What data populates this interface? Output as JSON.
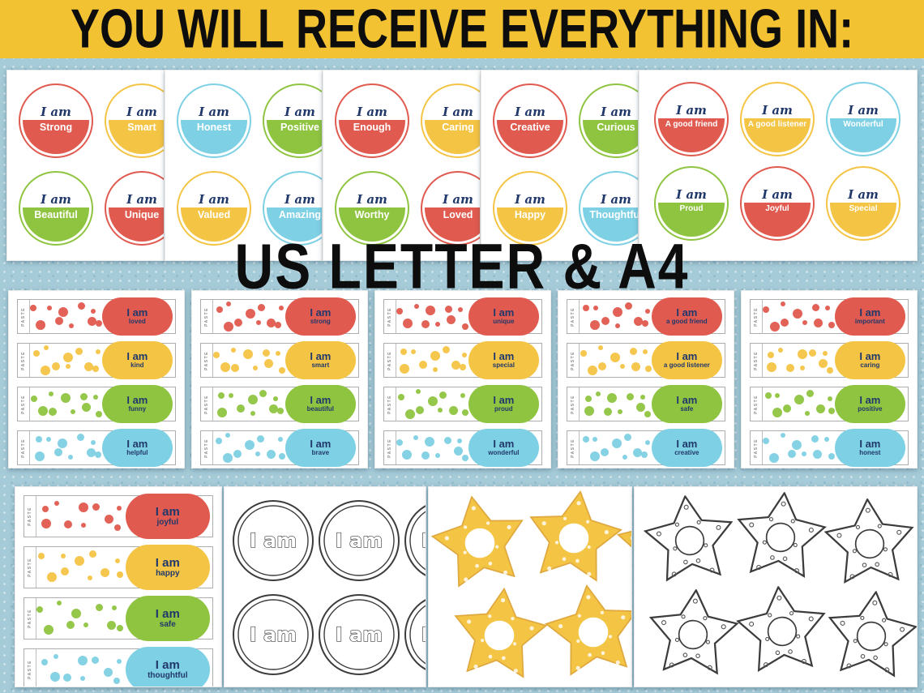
{
  "banner": {
    "text": "YOU WILL RECEIVE EVERYTHING IN:"
  },
  "format_overlay": "US LETTER & A4",
  "affirmation_prefix": "I am",
  "paste_label": "PASTE",
  "palette": {
    "red": "#E05A4F",
    "yellow": "#F4C445",
    "green": "#8FC441",
    "blue": "#7ED0E4",
    "navy": "#21386B",
    "banner_yellow": "#F2C233",
    "background_blue": "#A6CBD8",
    "ink": "#0D0D0D",
    "outline_ink": "#3C3C3C",
    "star_stroke": "#DFA93F"
  },
  "circle_pages": [
    {
      "circles": [
        {
          "word": "Strong",
          "color": "red"
        },
        {
          "word": "Smart",
          "color": "yellow"
        },
        {
          "word": "Beautiful",
          "color": "green"
        },
        {
          "word": "Unique",
          "color": "red"
        }
      ]
    },
    {
      "circles": [
        {
          "word": "Honest",
          "color": "blue"
        },
        {
          "word": "Positive",
          "color": "green"
        },
        {
          "word": "Valued",
          "color": "yellow"
        },
        {
          "word": "Amazing",
          "color": "blue"
        }
      ]
    },
    {
      "circles": [
        {
          "word": "Enough",
          "color": "red"
        },
        {
          "word": "Caring",
          "color": "yellow"
        },
        {
          "word": "Worthy",
          "color": "green"
        },
        {
          "word": "Loved",
          "color": "red"
        }
      ]
    },
    {
      "circles": [
        {
          "word": "Creative",
          "color": "red"
        },
        {
          "word": "Curious",
          "color": "green"
        },
        {
          "word": "Happy",
          "color": "yellow"
        },
        {
          "word": "Thoughtful",
          "color": "blue"
        }
      ]
    },
    {
      "circles": [
        {
          "word": "A good friend",
          "color": "red"
        },
        {
          "word": "A good listener",
          "color": "yellow"
        },
        {
          "word": "Wonderful",
          "color": "blue"
        },
        {
          "word": "Proud",
          "color": "green"
        },
        {
          "word": "Joyful",
          "color": "red"
        },
        {
          "word": "Special",
          "color": "yellow"
        }
      ]
    }
  ],
  "bracelet_pages": [
    {
      "strips": [
        {
          "word": "loved",
          "color": "red"
        },
        {
          "word": "kind",
          "color": "yellow"
        },
        {
          "word": "funny",
          "color": "green"
        },
        {
          "word": "helpful",
          "color": "blue"
        }
      ]
    },
    {
      "strips": [
        {
          "word": "strong",
          "color": "red"
        },
        {
          "word": "smart",
          "color": "yellow"
        },
        {
          "word": "beautiful",
          "color": "green"
        },
        {
          "word": "brave",
          "color": "blue"
        }
      ]
    },
    {
      "strips": [
        {
          "word": "unique",
          "color": "red"
        },
        {
          "word": "special",
          "color": "yellow"
        },
        {
          "word": "proud",
          "color": "green"
        },
        {
          "word": "wonderful",
          "color": "blue"
        }
      ]
    },
    {
      "strips": [
        {
          "word": "a good friend",
          "color": "red"
        },
        {
          "word": "a good listener",
          "color": "yellow"
        },
        {
          "word": "safe",
          "color": "green"
        },
        {
          "word": "creative",
          "color": "blue"
        }
      ]
    },
    {
      "strips": [
        {
          "word": "important",
          "color": "red"
        },
        {
          "word": "caring",
          "color": "yellow"
        },
        {
          "word": "positive",
          "color": "green"
        },
        {
          "word": "honest",
          "color": "blue"
        }
      ]
    }
  ],
  "row3_bracelet_page": {
    "strips": [
      {
        "word": "joyful",
        "color": "red"
      },
      {
        "word": "happy",
        "color": "yellow"
      },
      {
        "word": "safe",
        "color": "green"
      },
      {
        "word": "thoughtful",
        "color": "blue"
      }
    ]
  }
}
